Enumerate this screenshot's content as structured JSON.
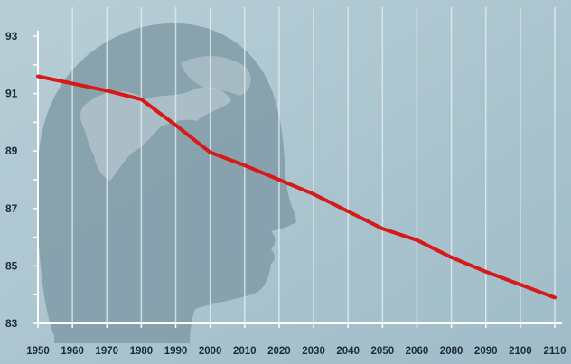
{
  "chart_data": {
    "type": "line",
    "title": "",
    "xlabel": "",
    "ylabel": "",
    "x_ticks": [
      "1950",
      "1960",
      "1970",
      "1980",
      "1990",
      "2000",
      "2010",
      "2020",
      "2030",
      "2040",
      "2050",
      "2060",
      "2080",
      "2090",
      "2100",
      "2110"
    ],
    "y_ticks": [
      "93",
      "91",
      "89",
      "87",
      "85",
      "83"
    ],
    "ylim": [
      83,
      93
    ],
    "grid": "vertical",
    "series": [
      {
        "name": "",
        "color": "#d61a1a",
        "points": [
          {
            "x": "1950",
            "y": 91.6
          },
          {
            "x": "1970",
            "y": 91.1
          },
          {
            "x": "1980",
            "y": 90.8
          },
          {
            "x": "1990",
            "y": 89.9
          },
          {
            "x": "2000",
            "y": 88.95
          },
          {
            "x": "2010",
            "y": 88.5
          },
          {
            "x": "2020",
            "y": 88.0
          },
          {
            "x": "2030",
            "y": 87.5
          },
          {
            "x": "2040",
            "y": 86.9
          },
          {
            "x": "2050",
            "y": 86.3
          },
          {
            "x": "2060",
            "y": 85.9
          },
          {
            "x": "2080",
            "y": 85.3
          },
          {
            "x": "2090",
            "y": 84.8
          },
          {
            "x": "2100",
            "y": 84.35
          },
          {
            "x": "2110",
            "y": 83.9
          }
        ]
      }
    ],
    "background_illustration": "human-head-silhouette-with-world-map",
    "colors": {
      "background": "#a9c4cf",
      "line": "#d61a1a",
      "axis": "#ffffff",
      "silhouette": "#7f9aa6"
    }
  }
}
